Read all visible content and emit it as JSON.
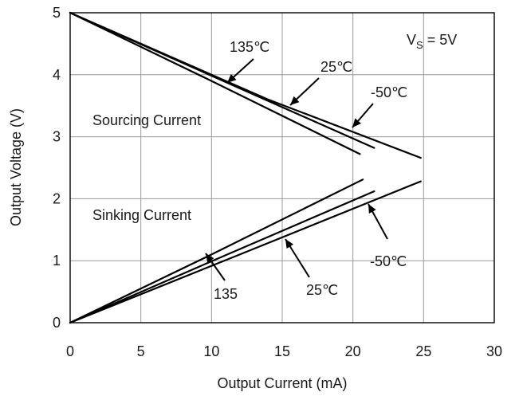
{
  "chart_data": {
    "type": "line",
    "xlabel": "Output Current (mA)",
    "ylabel": "Output Voltage (V)",
    "xlim": [
      0,
      30
    ],
    "ylim": [
      0,
      5
    ],
    "xticks": [
      0,
      5,
      10,
      15,
      20,
      25,
      30
    ],
    "yticks": [
      0,
      1,
      2,
      3,
      4,
      5
    ],
    "grid": true,
    "annotations": {
      "supply": "V",
      "supply_sub": "S",
      "supply_val": " = 5V",
      "sourcing": "Sourcing Current",
      "sinking": "Sinking Current",
      "src_135": "135℃",
      "src_25": "25℃",
      "src_m50": "-50℃",
      "snk_135": "135",
      "snk_25": "25℃",
      "snk_m50": "-50℃"
    },
    "series": [
      {
        "group": "sourcing",
        "temp": "135",
        "x": [
          0,
          10,
          20.5
        ],
        "y": [
          5.0,
          3.9,
          2.72
        ]
      },
      {
        "group": "sourcing",
        "temp": "25",
        "x": [
          0,
          12,
          21.5
        ],
        "y": [
          5.0,
          3.78,
          2.82
        ]
      },
      {
        "group": "sourcing",
        "temp": "-50",
        "x": [
          0,
          14,
          24.8
        ],
        "y": [
          5.0,
          3.6,
          2.66
        ]
      },
      {
        "group": "sinking",
        "temp": "135",
        "x": [
          0,
          10,
          20.7
        ],
        "y": [
          0.0,
          1.1,
          2.31
        ]
      },
      {
        "group": "sinking",
        "temp": "25",
        "x": [
          0,
          11,
          21.5
        ],
        "y": [
          0.0,
          1.09,
          2.12
        ]
      },
      {
        "group": "sinking",
        "temp": "-50",
        "x": [
          0,
          12,
          24.8
        ],
        "y": [
          0.0,
          1.1,
          2.28
        ]
      }
    ]
  }
}
